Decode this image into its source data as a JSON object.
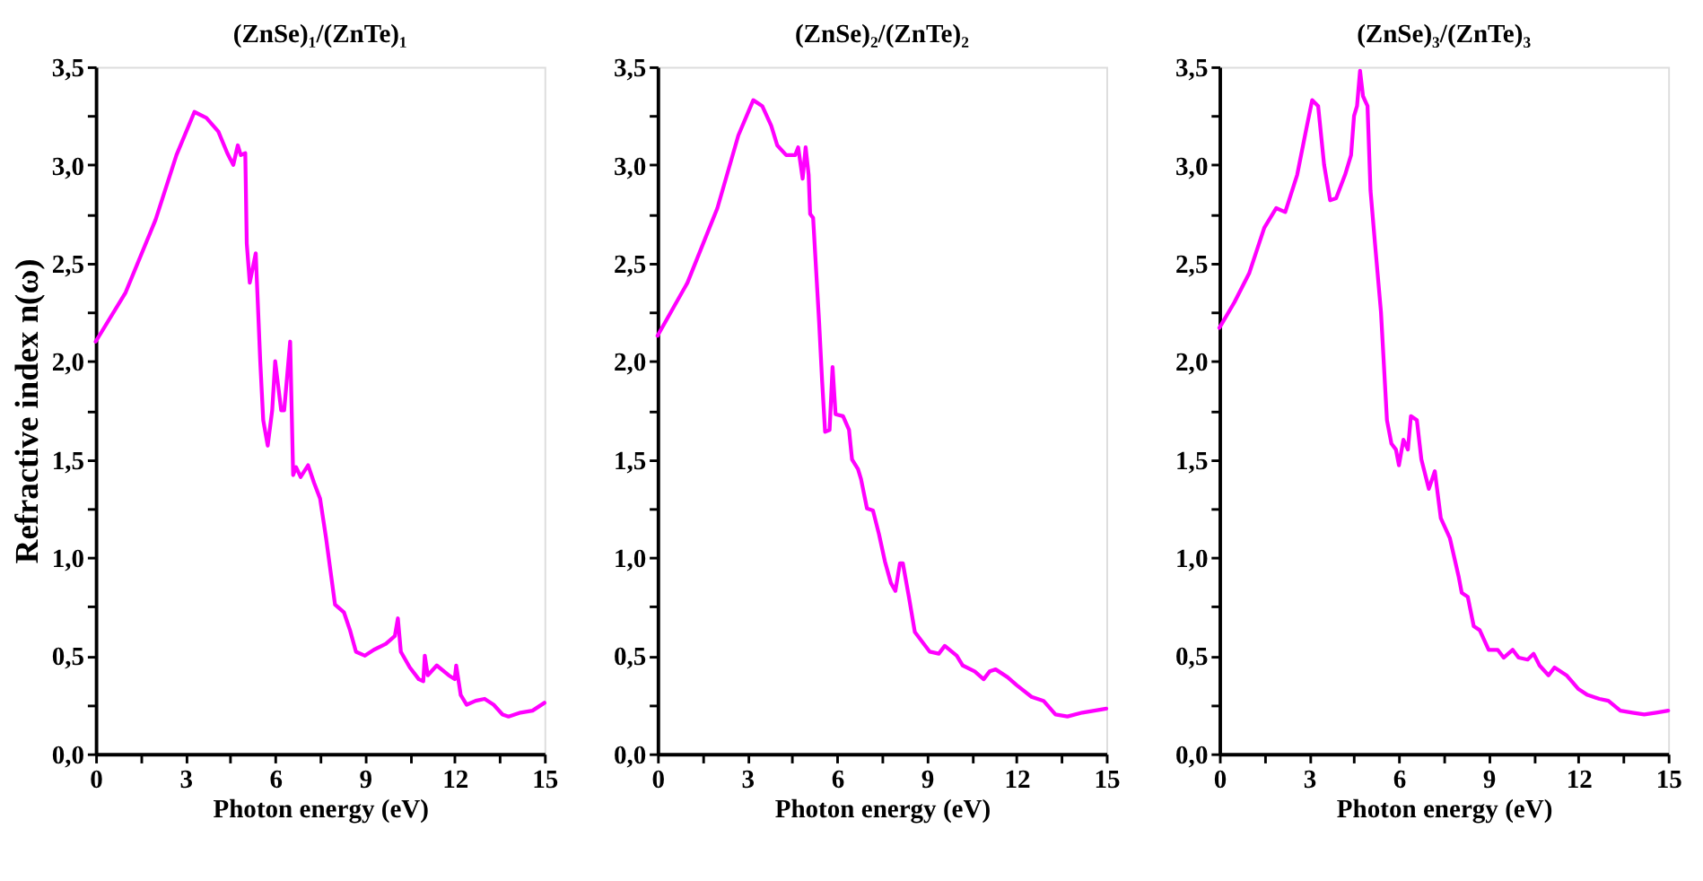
{
  "chart_data": [
    {
      "type": "line",
      "title": "(ZnSe)₁/(ZnTe)₁",
      "xlabel": "Photon energy (eV)",
      "ylabel": "Refractive index n(ω)",
      "xlim": [
        0,
        15
      ],
      "ylim": [
        0,
        3.5
      ],
      "grid": false,
      "marker": "none",
      "line_style": "solid",
      "xticks": [
        0,
        {
          "value": 1.5,
          "label": null
        },
        3,
        {
          "value": 4.5,
          "label": null
        },
        6,
        {
          "value": 7.5,
          "label": null
        },
        9,
        {
          "value": 10.5,
          "label": null
        },
        12,
        {
          "value": 13.5,
          "label": null
        },
        15
      ],
      "yticks": [
        {
          "value": 0,
          "label": "0,0"
        },
        {
          "value": 0.25,
          "label": null
        },
        {
          "value": 0.5,
          "label": "0,5"
        },
        {
          "value": 0.75,
          "label": null
        },
        {
          "value": 1,
          "label": "1,0"
        },
        {
          "value": 1.25,
          "label": null
        },
        {
          "value": 1.5,
          "label": "1,5"
        },
        {
          "value": 1.75,
          "label": null
        },
        {
          "value": 2,
          "label": "2,0"
        },
        {
          "value": 2.25,
          "label": null
        },
        {
          "value": 2.5,
          "label": "2,5"
        },
        {
          "value": 2.75,
          "label": null
        },
        {
          "value": 3,
          "label": "3,0"
        },
        {
          "value": 3.25,
          "label": null
        },
        {
          "value": 3.5,
          "label": "3,5"
        }
      ],
      "series": [
        {
          "color": "#ff00ff",
          "x": [
            0,
            1,
            2,
            2.7,
            3.3,
            3.7,
            4.1,
            4.4,
            4.6,
            4.75,
            4.85,
            5.0,
            5.05,
            5.15,
            5.35,
            5.5,
            5.6,
            5.75,
            5.9,
            6.0,
            6.2,
            6.3,
            6.5,
            6.6,
            6.7,
            6.85,
            7.1,
            7.3,
            7.5,
            7.7,
            8.0,
            8.3,
            8.5,
            8.7,
            9.0,
            9.3,
            9.7,
            10.0,
            10.1,
            10.2,
            10.5,
            10.8,
            10.95,
            11.0,
            11.1,
            11.4,
            11.8,
            12.0,
            12.05,
            12.2,
            12.4,
            12.7,
            13.0,
            13.3,
            13.6,
            13.8,
            14.2,
            14.6,
            15
          ],
          "values": [
            2.1,
            2.35,
            2.72,
            3.05,
            3.27,
            3.24,
            3.17,
            3.06,
            3.0,
            3.1,
            3.05,
            3.06,
            2.6,
            2.4,
            2.55,
            2.0,
            1.7,
            1.57,
            1.75,
            2.0,
            1.75,
            1.75,
            2.1,
            1.42,
            1.46,
            1.41,
            1.47,
            1.38,
            1.3,
            1.1,
            0.76,
            0.72,
            0.63,
            0.52,
            0.5,
            0.53,
            0.56,
            0.6,
            0.69,
            0.52,
            0.44,
            0.38,
            0.37,
            0.5,
            0.4,
            0.45,
            0.4,
            0.38,
            0.45,
            0.3,
            0.25,
            0.27,
            0.28,
            0.25,
            0.2,
            0.19,
            0.21,
            0.22,
            0.26
          ]
        }
      ]
    },
    {
      "type": "line",
      "title": "(ZnSe)₂/(ZnTe)₂",
      "xlabel": "Photon energy (eV)",
      "xlim": [
        0,
        15
      ],
      "ylim": [
        0,
        3.5
      ],
      "grid": false,
      "marker": "none",
      "line_style": "solid",
      "xticks": [
        0,
        {
          "value": 1.5,
          "label": null
        },
        3,
        {
          "value": 4.5,
          "label": null
        },
        6,
        {
          "value": 7.5,
          "label": null
        },
        9,
        {
          "value": 10.5,
          "label": null
        },
        12,
        {
          "value": 13.5,
          "label": null
        },
        15
      ],
      "yticks": [
        {
          "value": 0,
          "label": "0,0"
        },
        {
          "value": 0.25,
          "label": null
        },
        {
          "value": 0.5,
          "label": "0,5"
        },
        {
          "value": 0.75,
          "label": null
        },
        {
          "value": 1,
          "label": "1,0"
        },
        {
          "value": 1.25,
          "label": null
        },
        {
          "value": 1.5,
          "label": "1,5"
        },
        {
          "value": 1.75,
          "label": null
        },
        {
          "value": 2,
          "label": "2,0"
        },
        {
          "value": 2.25,
          "label": null
        },
        {
          "value": 2.5,
          "label": "2,5"
        },
        {
          "value": 2.75,
          "label": null
        },
        {
          "value": 3,
          "label": "3,0"
        },
        {
          "value": 3.25,
          "label": null
        },
        {
          "value": 3.5,
          "label": "3,5"
        }
      ],
      "series": [
        {
          "color": "#ff00ff",
          "x": [
            0,
            1,
            2,
            2.7,
            3.2,
            3.5,
            3.8,
            4.0,
            4.3,
            4.6,
            4.7,
            4.85,
            4.95,
            5.05,
            5.1,
            5.2,
            5.4,
            5.5,
            5.6,
            5.75,
            5.85,
            5.95,
            6.2,
            6.4,
            6.5,
            6.7,
            6.8,
            7.0,
            7.2,
            7.4,
            7.6,
            7.8,
            7.95,
            8.1,
            8.2,
            8.4,
            8.6,
            8.9,
            9.1,
            9.4,
            9.6,
            10.0,
            10.2,
            10.6,
            10.9,
            11.1,
            11.3,
            11.7,
            12.0,
            12.5,
            12.9,
            13.3,
            13.7,
            14.2,
            14.6,
            15
          ],
          "values": [
            2.13,
            2.4,
            2.78,
            3.15,
            3.33,
            3.3,
            3.2,
            3.1,
            3.05,
            3.05,
            3.09,
            2.93,
            3.09,
            2.95,
            2.75,
            2.73,
            2.2,
            1.9,
            1.64,
            1.65,
            1.97,
            1.73,
            1.72,
            1.65,
            1.5,
            1.45,
            1.4,
            1.25,
            1.24,
            1.12,
            0.98,
            0.87,
            0.83,
            0.97,
            0.97,
            0.8,
            0.62,
            0.56,
            0.52,
            0.51,
            0.55,
            0.5,
            0.45,
            0.42,
            0.38,
            0.42,
            0.43,
            0.39,
            0.35,
            0.29,
            0.27,
            0.2,
            0.19,
            0.21,
            0.22,
            0.23
          ]
        }
      ]
    },
    {
      "type": "line",
      "title": "(ZnSe)₃/(ZnTe)₃",
      "xlabel": "Photon energy (eV)",
      "xlim": [
        0,
        15
      ],
      "ylim": [
        0,
        3.5
      ],
      "grid": false,
      "marker": "none",
      "line_style": "solid",
      "xticks": [
        0,
        {
          "value": 1.5,
          "label": null
        },
        3,
        {
          "value": 4.5,
          "label": null
        },
        6,
        {
          "value": 7.5,
          "label": null
        },
        9,
        {
          "value": 10.5,
          "label": null
        },
        12,
        {
          "value": 13.5,
          "label": null
        },
        15
      ],
      "yticks": [
        {
          "value": 0,
          "label": "0,0"
        },
        {
          "value": 0.25,
          "label": null
        },
        {
          "value": 0.5,
          "label": "0,5"
        },
        {
          "value": 0.75,
          "label": null
        },
        {
          "value": 1,
          "label": "1,0"
        },
        {
          "value": 1.25,
          "label": null
        },
        {
          "value": 1.5,
          "label": "1,5"
        },
        {
          "value": 1.75,
          "label": null
        },
        {
          "value": 2,
          "label": "2,0"
        },
        {
          "value": 2.25,
          "label": null
        },
        {
          "value": 2.5,
          "label": "2,5"
        },
        {
          "value": 2.75,
          "label": null
        },
        {
          "value": 3,
          "label": "3,0"
        },
        {
          "value": 3.25,
          "label": null
        },
        {
          "value": 3.5,
          "label": "3,5"
        }
      ],
      "series": [
        {
          "color": "#ff00ff",
          "x": [
            0,
            0.5,
            1,
            1.5,
            1.9,
            2.2,
            2.6,
            2.9,
            3.1,
            3.3,
            3.5,
            3.7,
            3.9,
            4.2,
            4.4,
            4.5,
            4.6,
            4.7,
            4.8,
            4.95,
            5.05,
            5.2,
            5.4,
            5.6,
            5.75,
            5.9,
            6.0,
            6.15,
            6.3,
            6.4,
            6.6,
            6.75,
            7.0,
            7.2,
            7.4,
            7.7,
            8.0,
            8.1,
            8.3,
            8.5,
            8.7,
            9.0,
            9.3,
            9.5,
            9.8,
            10.0,
            10.3,
            10.5,
            10.7,
            11.0,
            11.2,
            11.6,
            12.0,
            12.3,
            12.7,
            13.0,
            13.4,
            13.8,
            14.2,
            14.6,
            15
          ],
          "values": [
            2.17,
            2.3,
            2.45,
            2.68,
            2.78,
            2.76,
            2.95,
            3.18,
            3.33,
            3.3,
            3.0,
            2.82,
            2.83,
            2.95,
            3.05,
            3.25,
            3.3,
            3.48,
            3.35,
            3.3,
            2.87,
            2.6,
            2.25,
            1.7,
            1.58,
            1.55,
            1.47,
            1.6,
            1.55,
            1.72,
            1.7,
            1.5,
            1.35,
            1.44,
            1.2,
            1.1,
            0.9,
            0.82,
            0.8,
            0.65,
            0.63,
            0.53,
            0.53,
            0.49,
            0.53,
            0.49,
            0.48,
            0.51,
            0.45,
            0.4,
            0.44,
            0.4,
            0.33,
            0.3,
            0.28,
            0.27,
            0.22,
            0.21,
            0.2,
            0.21,
            0.22
          ]
        }
      ]
    }
  ]
}
